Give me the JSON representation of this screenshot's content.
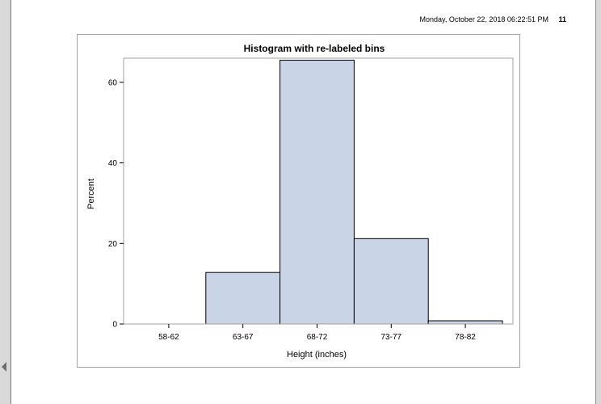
{
  "header": {
    "timestamp": "Monday, October 22, 2018 06:22:51 PM",
    "page_number": "11"
  },
  "colors": {
    "bar_fill": "#c9d4e6",
    "bar_stroke": "#000000",
    "gutter": "#d9d9d9"
  },
  "icons": {
    "left_scroll": "scroll-left-arrow-icon"
  },
  "chart_data": {
    "type": "bar",
    "title": "Histogram with re-labeled bins",
    "xlabel": "Height (inches)",
    "ylabel": "Percent",
    "categories": [
      "58-62",
      "63-67",
      "68-72",
      "73-77",
      "78-82"
    ],
    "values": [
      0,
      12.8,
      65.5,
      21.2,
      0.8
    ],
    "ylim": [
      0,
      66
    ],
    "yticks": [
      0,
      20,
      40,
      60
    ],
    "grid": false,
    "legend": "none"
  }
}
